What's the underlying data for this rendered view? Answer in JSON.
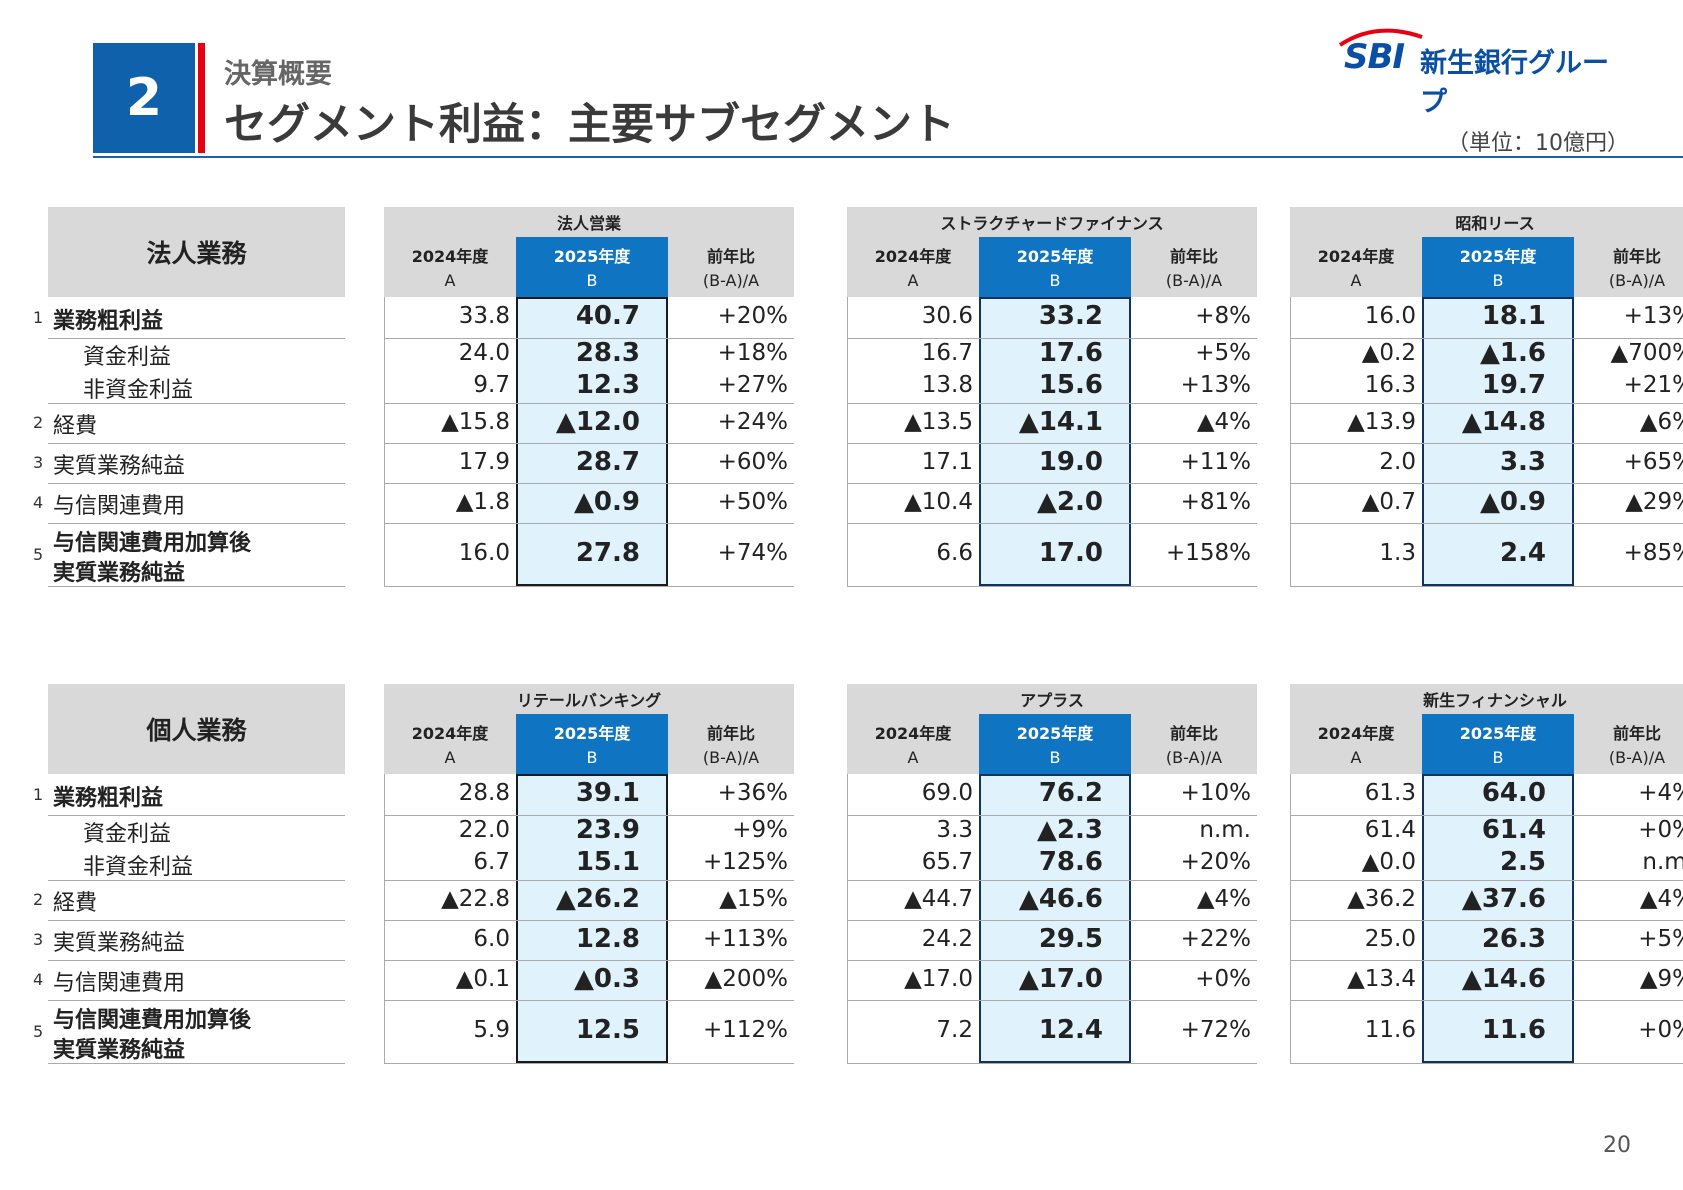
{
  "header": {
    "section_number": "2",
    "subtitle": "決算概要",
    "title": "セグメント利益：主要サブセグメント",
    "unit": "（単位：10億円）",
    "logo_sbi": "SBI",
    "logo_name": "新生銀行グループ",
    "page_number": "20"
  },
  "columns": {
    "y2024": "2024年度",
    "y2025": "2025年度",
    "yoy": "前年比",
    "a": "A",
    "b": "B",
    "ba": "(B-A)/A"
  },
  "blocks": [
    {
      "category": "法人業務",
      "rows": [
        {
          "num": "1",
          "label": "業務粗利益",
          "bold": true
        },
        {
          "num": "",
          "label": "資金利益",
          "bold": false
        },
        {
          "num": "",
          "label": "非資金利益",
          "bold": false
        },
        {
          "num": "2",
          "label": "経費",
          "bold": false
        },
        {
          "num": "3",
          "label": "実質業務純益",
          "bold": false
        },
        {
          "num": "4",
          "label": "与信関連費用",
          "bold": false
        },
        {
          "num": "5",
          "label": "与信関連費用加算後",
          "label2": "実質業務純益",
          "bold": true
        }
      ],
      "tables": [
        {
          "name": "法人営業",
          "cells": [
            [
              "33.8",
              "40.7",
              "+20%"
            ],
            [
              "24.0",
              "28.3",
              "+18%"
            ],
            [
              "9.7",
              "12.3",
              "+27%"
            ],
            [
              "▲15.8",
              "▲12.0",
              "+24%"
            ],
            [
              "17.9",
              "28.7",
              "+60%"
            ],
            [
              "▲1.8",
              "▲0.9",
              "+50%"
            ],
            [
              "16.0",
              "27.8",
              "+74%"
            ]
          ]
        },
        {
          "name": "ストラクチャードファイナンス",
          "cells": [
            [
              "30.6",
              "33.2",
              "+8%"
            ],
            [
              "16.7",
              "17.6",
              "+5%"
            ],
            [
              "13.8",
              "15.6",
              "+13%"
            ],
            [
              "▲13.5",
              "▲14.1",
              "▲4%"
            ],
            [
              "17.1",
              "19.0",
              "+11%"
            ],
            [
              "▲10.4",
              "▲2.0",
              "+81%"
            ],
            [
              "6.6",
              "17.0",
              "+158%"
            ]
          ]
        },
        {
          "name": "昭和リース",
          "cells": [
            [
              "16.0",
              "18.1",
              "+13%"
            ],
            [
              "▲0.2",
              "▲1.6",
              "▲700%"
            ],
            [
              "16.3",
              "19.7",
              "+21%"
            ],
            [
              "▲13.9",
              "▲14.8",
              "▲6%"
            ],
            [
              "2.0",
              "3.3",
              "+65%"
            ],
            [
              "▲0.7",
              "▲0.9",
              "▲29%"
            ],
            [
              "1.3",
              "2.4",
              "+85%"
            ]
          ]
        }
      ]
    },
    {
      "category": "個人業務",
      "rows": [
        {
          "num": "1",
          "label": "業務粗利益",
          "bold": true
        },
        {
          "num": "",
          "label": "資金利益",
          "bold": false
        },
        {
          "num": "",
          "label": "非資金利益",
          "bold": false
        },
        {
          "num": "2",
          "label": "経費",
          "bold": false
        },
        {
          "num": "3",
          "label": "実質業務純益",
          "bold": false
        },
        {
          "num": "4",
          "label": "与信関連費用",
          "bold": false
        },
        {
          "num": "5",
          "label": "与信関連費用加算後",
          "label2": "実質業務純益",
          "bold": true
        }
      ],
      "tables": [
        {
          "name": "リテールバンキング",
          "cells": [
            [
              "28.8",
              "39.1",
              "+36%"
            ],
            [
              "22.0",
              "23.9",
              "+9%"
            ],
            [
              "6.7",
              "15.1",
              "+125%"
            ],
            [
              "▲22.8",
              "▲26.2",
              "▲15%"
            ],
            [
              "6.0",
              "12.8",
              "+113%"
            ],
            [
              "▲0.1",
              "▲0.3",
              "▲200%"
            ],
            [
              "5.9",
              "12.5",
              "+112%"
            ]
          ]
        },
        {
          "name": "アプラス",
          "cells": [
            [
              "69.0",
              "76.2",
              "+10%"
            ],
            [
              "3.3",
              "▲2.3",
              "n.m."
            ],
            [
              "65.7",
              "78.6",
              "+20%"
            ],
            [
              "▲44.7",
              "▲46.6",
              "▲4%"
            ],
            [
              "24.2",
              "29.5",
              "+22%"
            ],
            [
              "▲17.0",
              "▲17.0",
              "+0%"
            ],
            [
              "7.2",
              "12.4",
              "+72%"
            ]
          ]
        },
        {
          "name": "新生フィナンシャル",
          "cells": [
            [
              "61.3",
              "64.0",
              "+4%"
            ],
            [
              "61.4",
              "61.4",
              "+0%"
            ],
            [
              "▲0.0",
              "2.5",
              "n.m."
            ],
            [
              "▲36.2",
              "▲37.6",
              "▲4%"
            ],
            [
              "25.0",
              "26.3",
              "+5%"
            ],
            [
              "▲13.4",
              "▲14.6",
              "▲9%"
            ],
            [
              "11.6",
              "11.6",
              "+0%"
            ]
          ]
        }
      ]
    }
  ],
  "colors": {
    "accent_blue": "#0f61ac",
    "accent_red": "#e60012",
    "highlight": "#e0f3fd",
    "header_gray": "#d9d9d9",
    "selected_header": "#0f74c1"
  }
}
